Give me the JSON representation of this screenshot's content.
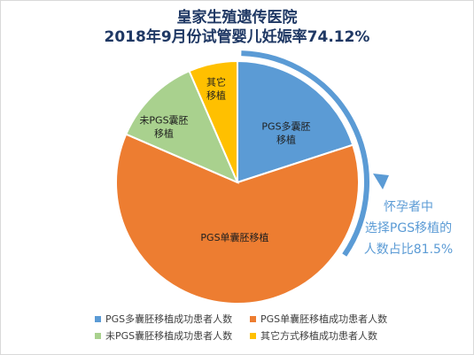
{
  "title": {
    "line1": "皇家生殖遗传医院",
    "line2": "2018年9月份试管婴儿妊娠率74.12%"
  },
  "callout": {
    "lines": [
      "怀孕者中",
      "选择PGS移植的",
      "人数占比81.5%"
    ],
    "color": "#5b9bd5"
  },
  "chart_data": {
    "type": "pie",
    "title": "皇家生殖遗传医院 2018年9月份试管婴儿妊娠率74.12%",
    "slices": [
      {
        "name": "PGS多囊胚移植成功患者人数",
        "label_lines": [
          "PGS多囊胚",
          "移植"
        ],
        "value": 20,
        "color": "#5b9bd5"
      },
      {
        "name": "PGS单囊胚移植成功患者人数",
        "label_lines": [
          "PGS单囊胚移植"
        ],
        "value": 61.5,
        "color": "#ed7d31"
      },
      {
        "name": "未PGS囊胚移植成功患者人数",
        "label_lines": [
          "未PGS囊胚",
          "移植"
        ],
        "value": 12,
        "color": "#a9d18e"
      },
      {
        "name": "其它方式移植成功患者人数",
        "label_lines": [
          "其它",
          "移植"
        ],
        "value": 6.5,
        "color": "#ffc000"
      }
    ],
    "legend_position": "bottom"
  }
}
